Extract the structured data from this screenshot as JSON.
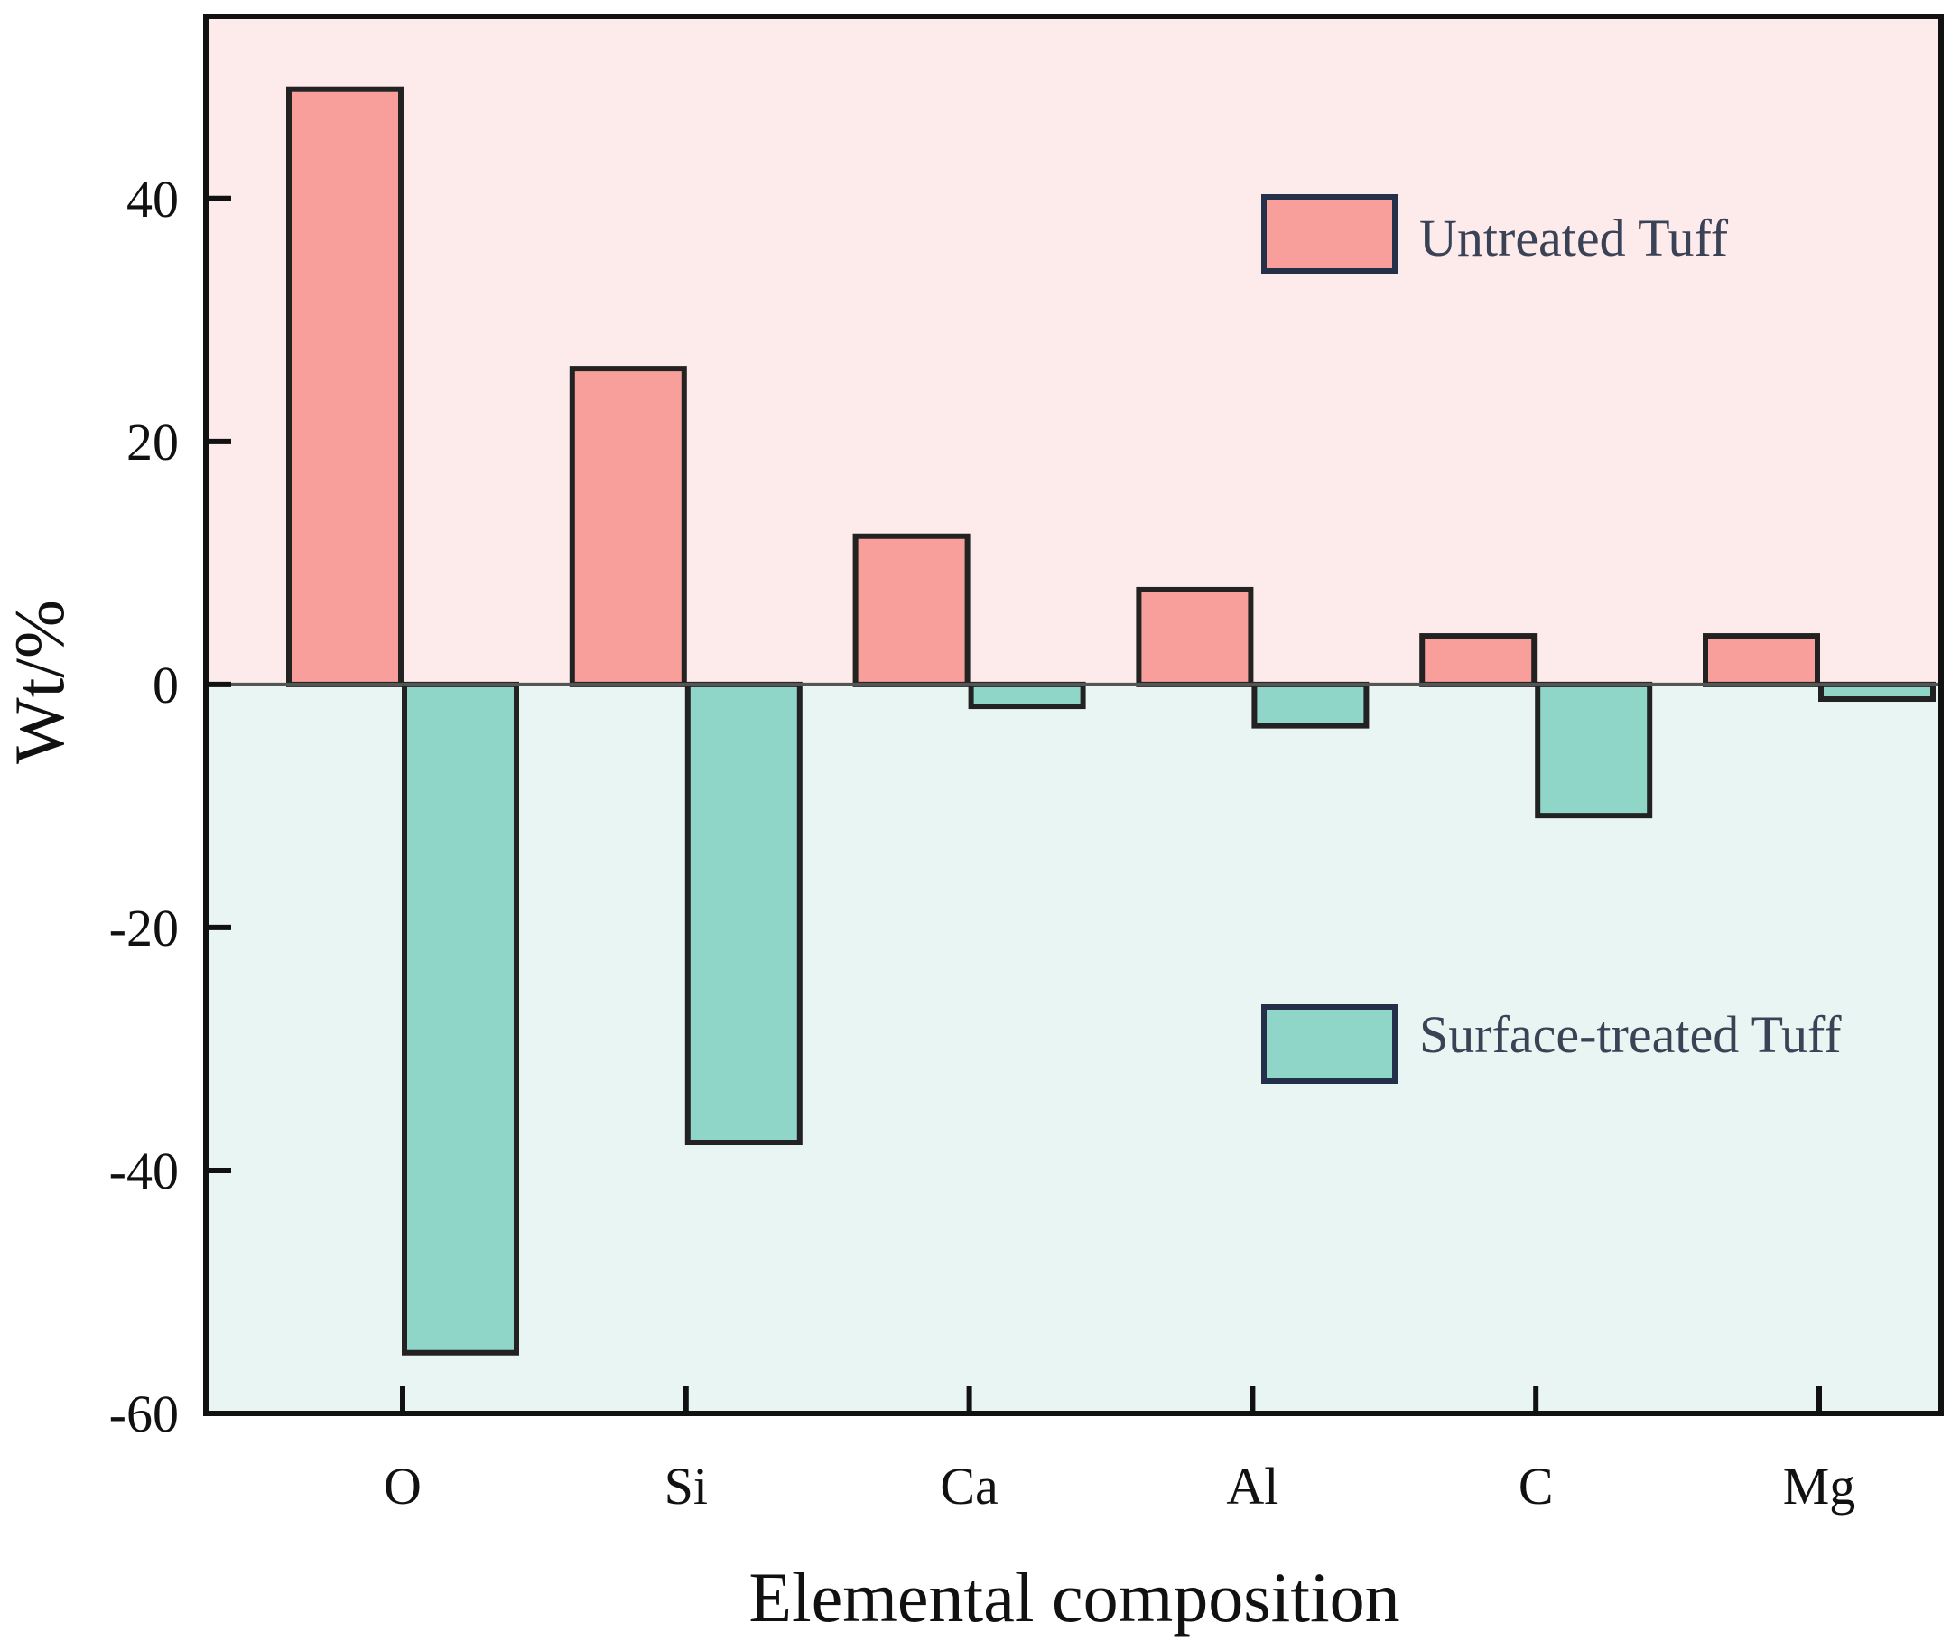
{
  "chart_data": {
    "type": "bar",
    "title": "",
    "xlabel": "Elemental composition",
    "ylabel": "Wt/%",
    "ylim": [
      -60,
      55
    ],
    "yticks": [
      -60,
      -40,
      -20,
      0,
      20,
      40
    ],
    "categories": [
      "O",
      "Si",
      "Ca",
      "Al",
      "C",
      "Mg"
    ],
    "series": [
      {
        "name": "Untreated Tuff",
        "values": [
          49,
          26,
          12.2,
          7.8,
          4,
          4
        ],
        "color": "#f89e9b"
      },
      {
        "name": "Surface-treated Tuff",
        "values": [
          -55,
          -37.7,
          -1.8,
          -3.4,
          -10.8,
          -1.2
        ],
        "color": "#8fd5c8"
      }
    ],
    "legend": "right",
    "background": {
      "positive": "#fdeaea",
      "negative": "#e9f5f2"
    },
    "grid": false
  }
}
